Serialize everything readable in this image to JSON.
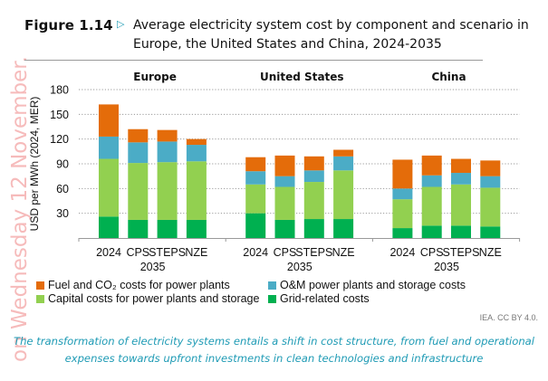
{
  "figure": {
    "label": "Figure 1.14",
    "arrow_icon": "triangle-right-outline-icon",
    "title": "Average electricity system cost by component and scenario in Europe, the United States and China, 2024-2035"
  },
  "watermark": "on Wednesday 12 November.",
  "credit": "IEA. CC BY 4.0.",
  "caption": "The transformation of electricity systems entails a shift in cost structure, from fuel and operational expenses towards upfront investments in clean technologies and infrastructure",
  "colors": {
    "fuel": "#e46c0a",
    "om": "#4bacc6",
    "capital": "#92d050",
    "grid": "#00b050",
    "caption": "#1f9bb5"
  },
  "chart_data": {
    "type": "bar",
    "stacked": true,
    "ylabel": "USD per MWh (2024, MER)",
    "ylim": [
      0,
      180
    ],
    "yticks": [
      30,
      60,
      90,
      120,
      150,
      180
    ],
    "grid": "horizontal-dotted",
    "legend_position": "bottom",
    "categories": [
      "2024",
      "CPS",
      "STEPS",
      "NZE"
    ],
    "category_group_label": "2035",
    "series_order_bottom_to_top": [
      "grid",
      "capital",
      "om",
      "fuel"
    ],
    "legend": [
      {
        "key": "fuel",
        "label": "Fuel and CO₂ costs for power plants"
      },
      {
        "key": "om",
        "label": "O&M power plants and storage costs"
      },
      {
        "key": "capital",
        "label": "Capital costs for power plants and storage"
      },
      {
        "key": "grid",
        "label": "Grid-related costs"
      }
    ],
    "panels": [
      {
        "title": "Europe",
        "series": [
          {
            "name": "Grid-related costs",
            "key": "grid",
            "values": [
              26,
              22,
              22,
              22
            ]
          },
          {
            "name": "Capital costs for power plants and storage",
            "key": "capital",
            "values": [
              70,
              69,
              70,
              71
            ]
          },
          {
            "name": "O&M power plants and storage costs",
            "key": "om",
            "values": [
              27,
              25,
              25,
              20
            ]
          },
          {
            "name": "Fuel and CO₂ costs for power plants",
            "key": "fuel",
            "values": [
              39,
              16,
              14,
              7
            ]
          }
        ]
      },
      {
        "title": "United States",
        "series": [
          {
            "name": "Grid-related costs",
            "key": "grid",
            "values": [
              30,
              22,
              23,
              23
            ]
          },
          {
            "name": "Capital costs for power plants and storage",
            "key": "capital",
            "values": [
              35,
              40,
              45,
              59
            ]
          },
          {
            "name": "O&M power plants and storage costs",
            "key": "om",
            "values": [
              16,
              13,
              14,
              17
            ]
          },
          {
            "name": "Fuel and CO₂ costs for power plants",
            "key": "fuel",
            "values": [
              17,
              25,
              17,
              8
            ]
          }
        ]
      },
      {
        "title": "China",
        "series": [
          {
            "name": "Grid-related costs",
            "key": "grid",
            "values": [
              12,
              15,
              15,
              14
            ]
          },
          {
            "name": "Capital costs for power plants and storage",
            "key": "capital",
            "values": [
              35,
              47,
              50,
              47
            ]
          },
          {
            "name": "O&M power plants and storage costs",
            "key": "om",
            "values": [
              13,
              14,
              14,
              14
            ]
          },
          {
            "name": "Fuel and CO₂ costs for power plants",
            "key": "fuel",
            "values": [
              35,
              24,
              17,
              19
            ]
          }
        ]
      }
    ]
  }
}
